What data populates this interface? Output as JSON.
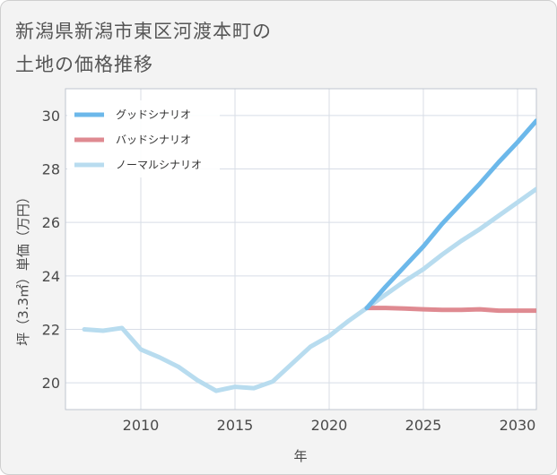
{
  "title_lines": [
    "新潟県新潟市東区河渡本町の",
    "土地の価格推移"
  ],
  "chart_data": {
    "type": "line",
    "xlabel": "年",
    "ylabel": "坪（3.3㎡）単価（万円）",
    "xlim": [
      2006,
      2031
    ],
    "ylim": [
      19,
      31
    ],
    "xticks": [
      2010,
      2015,
      2020,
      2025,
      2030
    ],
    "yticks": [
      20,
      22,
      24,
      26,
      28,
      30
    ],
    "grid": true,
    "legend_position": "top-left",
    "series": [
      {
        "name": "グッドシナリオ",
        "color": "#6cb8ea",
        "x": [
          2022,
          2023,
          2024,
          2025,
          2026,
          2027,
          2028,
          2029,
          2030,
          2031
        ],
        "y": [
          22.8,
          23.6,
          24.35,
          25.1,
          25.95,
          26.7,
          27.45,
          28.25,
          29.0,
          29.8
        ]
      },
      {
        "name": "バッドシナリオ",
        "color": "#df8a91",
        "x": [
          2022,
          2023,
          2024,
          2025,
          2026,
          2027,
          2028,
          2029,
          2030,
          2031
        ],
        "y": [
          22.8,
          22.8,
          22.78,
          22.75,
          22.73,
          22.73,
          22.75,
          22.7,
          22.7,
          22.7
        ]
      },
      {
        "name": "ノーマルシナリオ",
        "color": "#b8dcef",
        "x": [
          2007,
          2008,
          2009,
          2010,
          2011,
          2012,
          2013,
          2014,
          2015,
          2016,
          2017,
          2018,
          2019,
          2020,
          2021,
          2022,
          2023,
          2024,
          2025,
          2026,
          2027,
          2028,
          2029,
          2030,
          2031
        ],
        "y": [
          22.0,
          21.95,
          22.05,
          21.25,
          20.95,
          20.6,
          20.1,
          19.7,
          19.85,
          19.8,
          20.05,
          20.7,
          21.35,
          21.75,
          22.3,
          22.8,
          23.3,
          23.8,
          24.25,
          24.8,
          25.3,
          25.75,
          26.25,
          26.75,
          27.25
        ]
      }
    ]
  }
}
